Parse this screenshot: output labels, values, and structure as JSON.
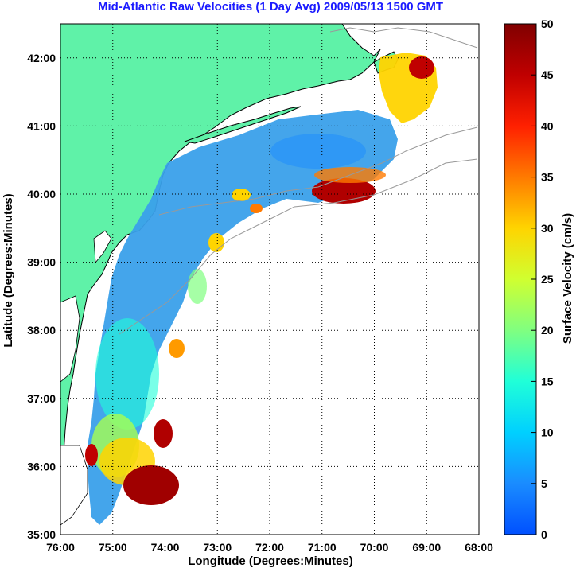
{
  "title": "Mid-Atlantic Raw Velocities (1 Day Avg) 2009/05/13 1500 GMT",
  "xlabel": "Longitude (Degrees:Minutes)",
  "ylabel": "Latitude (Degrees:Minutes)",
  "colorbar_label": "Surface Velocity (cm/s)",
  "x_ticks": [
    "76:00",
    "75:00",
    "74:00",
    "73:00",
    "72:00",
    "71:00",
    "70:00",
    "69:00",
    "68:00"
  ],
  "y_ticks": [
    "35:00",
    "36:00",
    "37:00",
    "38:00",
    "39:00",
    "40:00",
    "41:00",
    "42:00"
  ],
  "colorbar_ticks": [
    "0",
    "5",
    "10",
    "15",
    "20",
    "25",
    "30",
    "35",
    "40",
    "45",
    "50"
  ],
  "colorbar_range": [
    0,
    50
  ],
  "colors": {
    "land": "#5ff2a8",
    "title": "#1a1aff",
    "grid": "#000000",
    "bathymetry": "#999999"
  },
  "chart_data": {
    "type": "heatmap",
    "xlim": [
      -76.0,
      -68.0
    ],
    "ylim": [
      35.0,
      42.5
    ],
    "grid": true,
    "colormap": "jet",
    "clim": [
      0,
      50
    ]
  }
}
